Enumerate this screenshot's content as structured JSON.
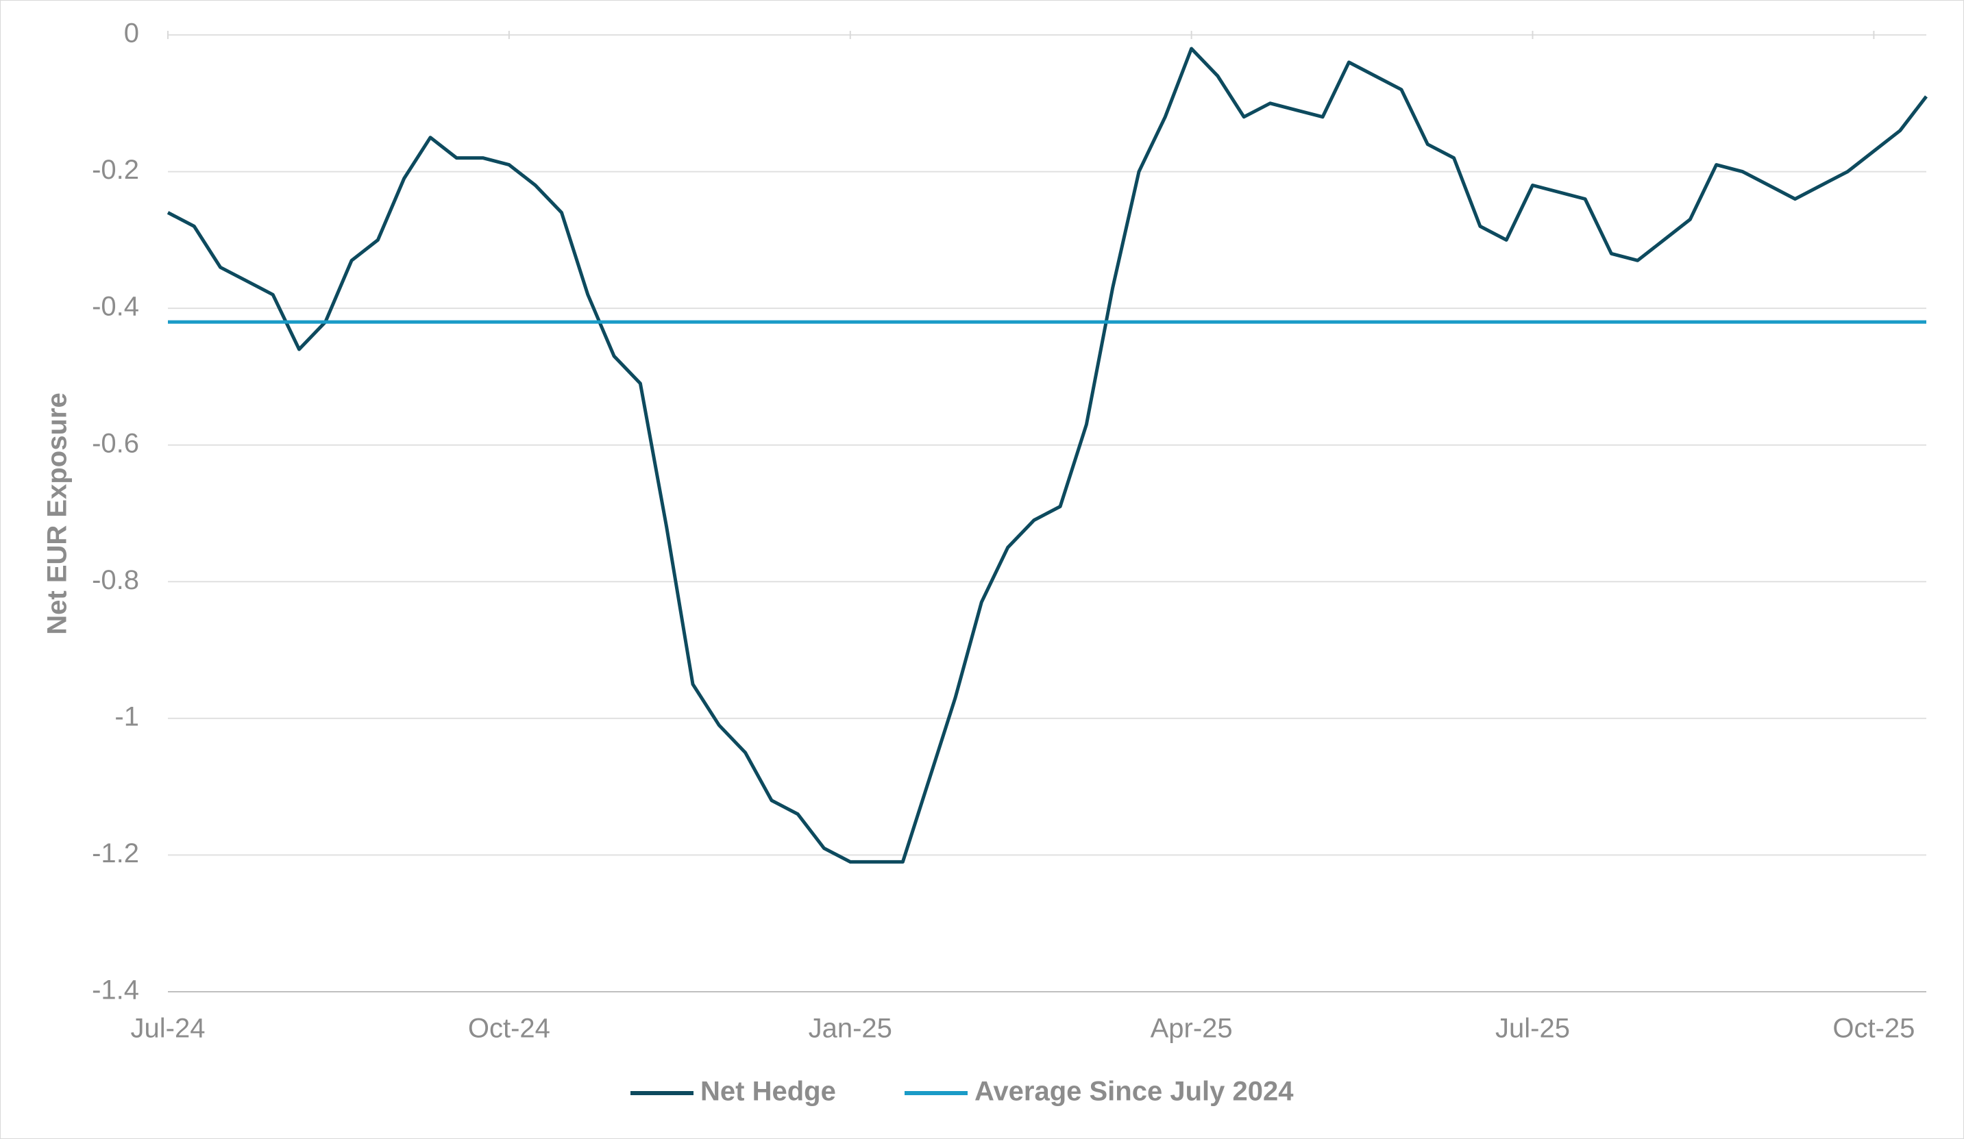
{
  "chart_data": {
    "type": "line",
    "y_label": "Net EUR Exposure",
    "categories": [
      "Jul-24",
      null,
      null,
      null,
      null,
      null,
      null,
      null,
      null,
      null,
      null,
      null,
      null,
      "Oct-24",
      null,
      null,
      null,
      null,
      null,
      null,
      null,
      null,
      null,
      null,
      null,
      null,
      "Jan-25",
      null,
      null,
      null,
      null,
      null,
      null,
      null,
      null,
      null,
      null,
      null,
      null,
      "Apr-25",
      null,
      null,
      null,
      null,
      null,
      null,
      null,
      null,
      null,
      null,
      null,
      null,
      "Jul-25",
      null,
      null,
      null,
      null,
      null,
      null,
      null,
      null,
      null,
      null,
      null,
      null,
      "Oct-25",
      null,
      null
    ],
    "series": [
      {
        "name": "Net Hedge",
        "color": "#0d4a5e",
        "values": [
          -0.26,
          -0.28,
          -0.34,
          -0.36,
          -0.38,
          -0.46,
          -0.42,
          -0.33,
          -0.3,
          -0.21,
          -0.15,
          -0.18,
          -0.18,
          -0.19,
          -0.22,
          -0.26,
          -0.38,
          -0.47,
          -0.51,
          -0.72,
          -0.95,
          -1.01,
          -1.05,
          -1.12,
          -1.14,
          -1.19,
          -1.21,
          -1.21,
          -1.21,
          -1.09,
          -0.97,
          -0.83,
          -0.75,
          -0.71,
          -0.69,
          -0.57,
          -0.37,
          -0.2,
          -0.12,
          -0.02,
          -0.06,
          -0.12,
          -0.1,
          -0.11,
          -0.12,
          -0.04,
          -0.06,
          -0.08,
          -0.16,
          -0.18,
          -0.28,
          -0.3,
          -0.22,
          -0.23,
          -0.24,
          -0.32,
          -0.33,
          -0.3,
          -0.27,
          -0.19,
          -0.2,
          -0.22,
          -0.24,
          -0.22,
          -0.2,
          -0.17,
          -0.14,
          -0.09
        ]
      },
      {
        "name": "Average Since July 2024",
        "color": "#1a9bc7",
        "value": -0.42
      }
    ],
    "ylim": [
      -1.4,
      0
    ],
    "yticks": [
      0,
      -0.2,
      -0.4,
      -0.6,
      -0.8,
      -1,
      -1.2,
      -1.4
    ],
    "grid": true,
    "legend": "bottom"
  }
}
